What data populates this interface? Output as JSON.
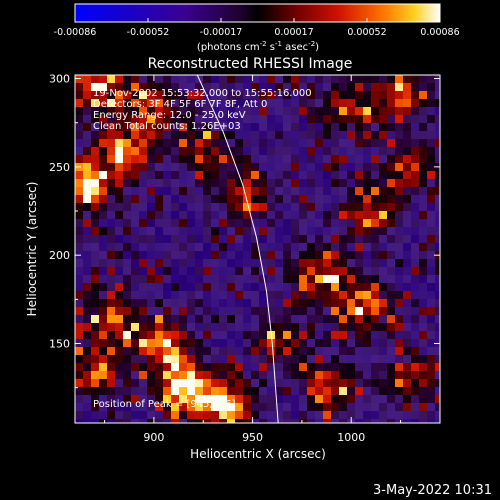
{
  "chart_data": {
    "type": "heatmap",
    "title": "Reconstructed RHESSI Image",
    "xlabel": "Heliocentric X (arcsec)",
    "ylabel": "Heliocentric Y (arcsec)",
    "xlim": [
      860,
      1045
    ],
    "ylim": [
      105,
      302
    ],
    "xticks": [
      900,
      950,
      1000
    ],
    "yticks": [
      150,
      200,
      250,
      300
    ],
    "colorbar": {
      "label_main": "(photons cm",
      "label_sup1": "-2",
      "label_mid1": " s",
      "label_sup2": "-1",
      "label_mid2": " asec",
      "label_sup3": "-2",
      "label_end": ")",
      "range": [
        -0.00086,
        0.00086
      ],
      "ticks": [
        "-0.00086",
        "-0.00052",
        "-0.00017",
        "0.00017",
        "0.00052",
        "0.00086"
      ]
    },
    "annotations": {
      "time_range": "19-Nov-2002 15:53:32.000 to 15:55:16.000",
      "detectors": "Detectors: 3F 4F 5F 6F 7F 8F, Att 0",
      "energy_range": "Energy Range: 12.0 - 25.0 keV",
      "method": "Clean     Total counts: 1.26E+03",
      "peak_position": "Position of Peak = [945,236]"
    },
    "limb_curve": [
      [
        922,
        302
      ],
      [
        935,
        270
      ],
      [
        945,
        240
      ],
      [
        952,
        210
      ],
      [
        957,
        180
      ],
      [
        960,
        150
      ],
      [
        962,
        120
      ],
      [
        963,
        105
      ]
    ],
    "hot_regions": [
      {
        "x": 865,
        "y": 240,
        "strength": 1.0
      },
      {
        "x": 885,
        "y": 260,
        "strength": 0.8
      },
      {
        "x": 870,
        "y": 295,
        "strength": 0.75
      },
      {
        "x": 900,
        "y": 285,
        "strength": 0.55
      },
      {
        "x": 925,
        "y": 260,
        "strength": 0.45
      },
      {
        "x": 945,
        "y": 236,
        "strength": 0.5
      },
      {
        "x": 915,
        "y": 125,
        "strength": 0.95
      },
      {
        "x": 935,
        "y": 115,
        "strength": 0.9
      },
      {
        "x": 905,
        "y": 150,
        "strength": 0.7
      },
      {
        "x": 880,
        "y": 165,
        "strength": 0.65
      },
      {
        "x": 870,
        "y": 135,
        "strength": 0.6
      },
      {
        "x": 985,
        "y": 190,
        "strength": 0.7
      },
      {
        "x": 1005,
        "y": 170,
        "strength": 0.65
      },
      {
        "x": 1010,
        "y": 225,
        "strength": 0.6
      },
      {
        "x": 1030,
        "y": 250,
        "strength": 0.55
      },
      {
        "x": 1025,
        "y": 290,
        "strength": 0.55
      },
      {
        "x": 1000,
        "y": 285,
        "strength": 0.5
      },
      {
        "x": 990,
        "y": 125,
        "strength": 0.6
      },
      {
        "x": 1030,
        "y": 130,
        "strength": 0.55
      },
      {
        "x": 965,
        "y": 150,
        "strength": 0.5
      }
    ]
  },
  "footer": {
    "date": "3-May-2022 10:31"
  }
}
